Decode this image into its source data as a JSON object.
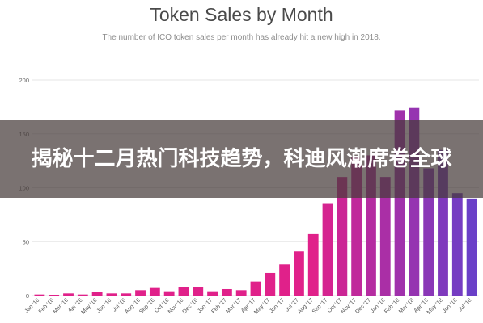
{
  "banner": {
    "text": "揭秘十二月热门科技趋势，科迪风潮席卷全球"
  },
  "chart_data": {
    "type": "bar",
    "title": "Token Sales by Month",
    "subtitle": "The number of ICO token sales per month has already hit a new high in 2018.",
    "ylim": [
      0,
      200
    ],
    "yticks": [
      0,
      50,
      100,
      150,
      200
    ],
    "grid": true,
    "categories": [
      "Jan '16",
      "Feb '16",
      "Mar '16",
      "Apr '16",
      "May '16",
      "Jun '16",
      "Jul '16",
      "Aug '16",
      "Sep '16",
      "Oct '16",
      "Nov '16",
      "Dec '16",
      "Jan '17",
      "Feb '17",
      "Mar '17",
      "Apr '17",
      "May '17",
      "Jun '17",
      "Jul '17",
      "Aug '17",
      "Sep '17",
      "Oct '17",
      "Nov '17",
      "Dec '17",
      "Jan '18",
      "Feb '18",
      "Mar '18",
      "Apr '18",
      "May '18",
      "Jun '18",
      "Jul '18"
    ],
    "x_tick_labels": [
      "Jan '16",
      "Feb '16",
      "Mar '16",
      "Apr '16",
      "May '16",
      "Jun '16",
      "Jul '16",
      "Aug '16",
      "Sep '16",
      "Oct '16",
      "Nov '16",
      "Dec '16",
      "Jan '17",
      "Feb '17",
      "Mar '17",
      "Apr '17",
      "May '17",
      "Jun '17",
      "Jul '17",
      "Aug '17",
      "Sep '17",
      "Oct '17",
      "Nov '17",
      "Dec '17",
      "Jan '18",
      "Feb '18",
      "Mar '18",
      "Apr '18",
      "May '18",
      "Jun '18",
      "Jul '18"
    ],
    "values": [
      1,
      0,
      2,
      1,
      3,
      2,
      2,
      5,
      7,
      4,
      8,
      8,
      4,
      6,
      5,
      13,
      21,
      29,
      41,
      57,
      85,
      110,
      128,
      130,
      110,
      172,
      174,
      118,
      135,
      95,
      90
    ],
    "colors": {
      "start": "#e0218a",
      "end": "#6a3fc8",
      "grid": "#e6e6e6"
    }
  }
}
